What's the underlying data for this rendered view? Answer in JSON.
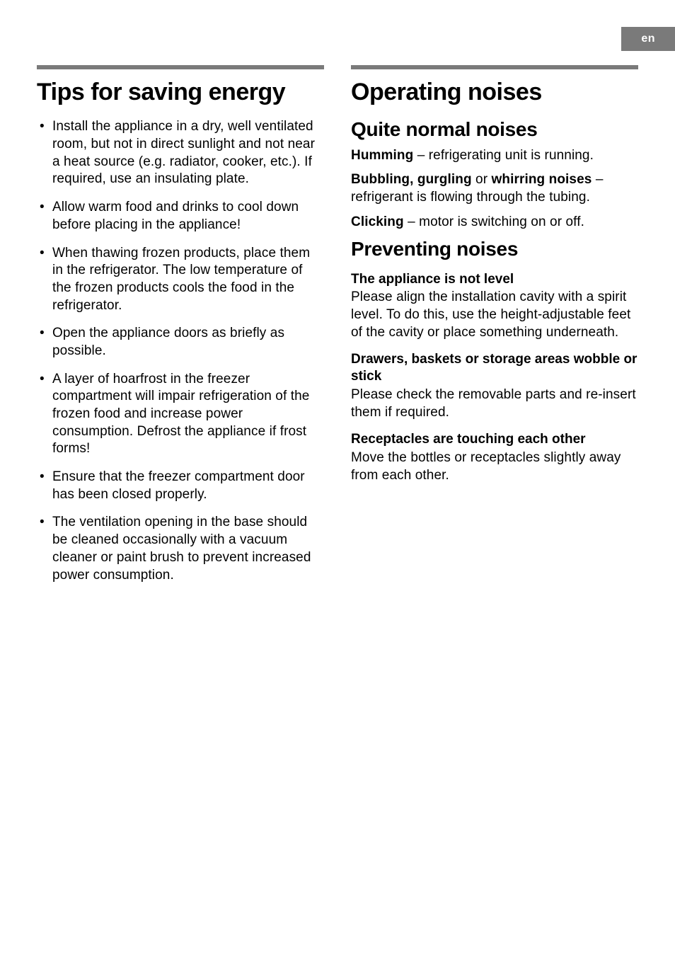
{
  "lang_tab": "en",
  "left": {
    "heading": "Tips for saving energy",
    "bullets": [
      "Install the appliance in a dry, well ventilated room, but not in direct sunlight and not near a heat source (e.g. radiator, cooker, etc.). If required, use an insulating plate.",
      "Allow warm food and drinks to cool down before placing in the appliance!",
      "When thawing frozen products, place them in the refrigerator. The low temperature of the frozen products cools the food in the refrigerator.",
      "Open the appliance doors as briefly as possible.",
      "A layer of hoarfrost in the freezer compartment will impair refrigeration of the frozen food and increase power consumption. Defrost the appliance if frost forms!",
      "Ensure that the freezer compartment door has been closed properly.",
      "The ventilation opening in the base should be cleaned occasionally with a vacuum cleaner or paint brush to prevent increased power consumption."
    ]
  },
  "right": {
    "heading": "Operating noises",
    "normal": {
      "heading": "Quite normal noises",
      "humming_bold": "Humming",
      "humming_rest": " – refrigerating unit is running.",
      "bubbling_bold1": "Bubbling, gurgling",
      "bubbling_mid": " or ",
      "bubbling_bold2": "whirring noises",
      "bubbling_rest": " – refrigerant is flowing through the tubing.",
      "clicking_bold": "Clicking",
      "clicking_rest": " – motor is switching on or off."
    },
    "preventing": {
      "heading": "Preventing noises",
      "level_h": "The appliance is not level",
      "level_p": "Please align the installation cavity with a spirit level. To do this, use the height-adjustable feet of the cavity or place something underneath.",
      "wobble_h": "Drawers, baskets or storage areas wobble or stick",
      "wobble_p": "Please check the removable parts and re-insert them if required.",
      "receptacles_h": "Receptacles are touching each other",
      "receptacles_p": "Move the bottles or receptacles slightly away from each other."
    }
  }
}
